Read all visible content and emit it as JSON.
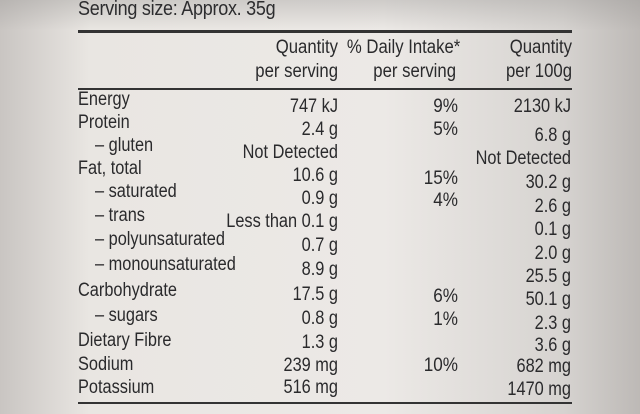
{
  "serving_size": "Serving size: Approx. 35g",
  "headers": {
    "col1_line1": "Quantity",
    "col1_line2": "per serving",
    "col2_line1": "% Daily Intake*",
    "col2_line2": "per serving",
    "col3_line1": "Quantity",
    "col3_line2": "per 100g"
  },
  "rows": [
    {
      "label": "Energy",
      "per_serving": "747 kJ",
      "daily_intake": "9%",
      "per_100g": "2130 kJ"
    },
    {
      "label": "Protein",
      "per_serving": "2.4 g",
      "daily_intake": "5%",
      "per_100g": "6.8 g"
    },
    {
      "label": "– gluten",
      "per_serving": "Not Detected",
      "daily_intake": "",
      "per_100g": "Not Detected"
    },
    {
      "label": "Fat, total",
      "per_serving": "10.6 g",
      "daily_intake": "15%",
      "per_100g": "30.2 g"
    },
    {
      "label": "– saturated",
      "per_serving": "0.9 g",
      "daily_intake": "4%",
      "per_100g": "2.6 g"
    },
    {
      "label": "– trans",
      "per_serving": "Less than 0.1 g",
      "daily_intake": "",
      "per_100g": "0.1 g"
    },
    {
      "label": "– polyunsaturated",
      "per_serving": "0.7 g",
      "daily_intake": "",
      "per_100g": "2.0 g"
    },
    {
      "label": "– monounsaturated",
      "per_serving": "8.9 g",
      "daily_intake": "",
      "per_100g": "25.5 g"
    },
    {
      "label": "Carbohydrate",
      "per_serving": "17.5 g",
      "daily_intake": "6%",
      "per_100g": "50.1 g"
    },
    {
      "label": "– sugars",
      "per_serving": "0.8 g",
      "daily_intake": "1%",
      "per_100g": "2.3 g"
    },
    {
      "label": "Dietary Fibre",
      "per_serving": "1.3 g",
      "daily_intake": "",
      "per_100g": "3.6 g"
    },
    {
      "label": "Sodium",
      "per_serving": "239 mg",
      "daily_intake": "10%",
      "per_100g": "682 mg"
    },
    {
      "label": "Potassium",
      "per_serving": "516 mg",
      "daily_intake": "",
      "per_100g": "1470 mg"
    }
  ]
}
